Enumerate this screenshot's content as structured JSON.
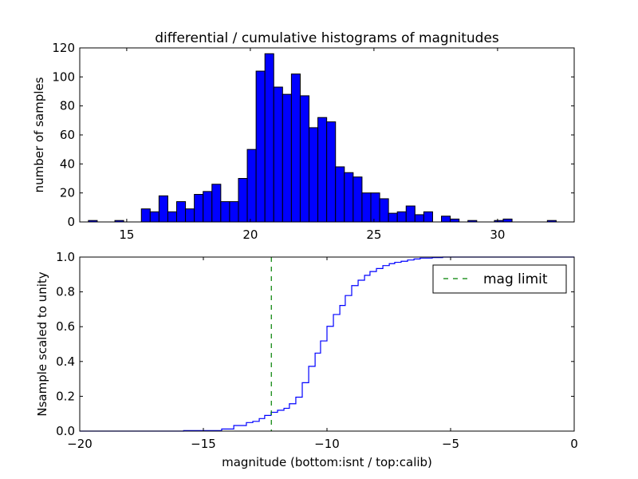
{
  "colors": {
    "bars": "#0000ff",
    "edge": "#000000",
    "cumulative": "#0000ff",
    "mag_limit": "#008000"
  },
  "chart_data": [
    {
      "type": "bar",
      "title": "differential / cumulative histograms of magnitudes",
      "xlabel": "",
      "ylabel": "number of samples",
      "xlim": [
        13.1,
        33.1
      ],
      "ylim": [
        0,
        120
      ],
      "xticks": [
        15,
        20,
        25,
        30
      ],
      "yticks": [
        0,
        20,
        40,
        60,
        80,
        100,
        120
      ],
      "bin_start": 13.45,
      "bin_width": 0.357,
      "values": [
        1,
        0,
        0,
        1,
        0,
        0,
        9,
        7,
        18,
        7,
        14,
        9,
        19,
        21,
        26,
        14,
        14,
        30,
        50,
        104,
        116,
        93,
        88,
        102,
        87,
        65,
        72,
        69,
        38,
        34,
        31,
        20,
        20,
        16,
        6,
        7,
        11,
        5,
        7,
        0,
        4,
        2,
        0,
        1,
        0,
        0,
        1,
        2,
        0,
        0,
        0,
        0,
        1
      ],
      "grid": false
    },
    {
      "type": "line",
      "title": "",
      "xlabel": "magnitude (bottom:isnt / top:calib)",
      "ylabel": "Nsample scaled to unity",
      "xlim": [
        -20,
        0
      ],
      "ylim": [
        0,
        1.0
      ],
      "xticks": [
        -20,
        -15,
        -10,
        -5,
        0
      ],
      "xtick_labels": [
        "−20",
        "−15",
        "−10",
        "−5",
        "0"
      ],
      "yticks": [
        0.0,
        0.2,
        0.4,
        0.6,
        0.8,
        1.0
      ],
      "ytick_labels": [
        "0.0",
        "0.2",
        "0.4",
        "0.6",
        "0.8",
        "1.0"
      ],
      "series": [
        {
          "name": "cumulative",
          "style": "steps",
          "x": [
            -20,
            -15.8,
            -14.26,
            -13.77,
            -13.26,
            -13.0,
            -12.74,
            -12.52,
            -12.26,
            -12.0,
            -11.74,
            -11.52,
            -11.26,
            -11.0,
            -10.74,
            -10.48,
            -10.26,
            -10.0,
            -9.74,
            -9.48,
            -9.26,
            -9.0,
            -8.74,
            -8.48,
            -8.26,
            -8.0,
            -7.74,
            -7.48,
            -7.26,
            -7.0,
            -6.74,
            -6.48,
            -6.23,
            -5.74,
            -5.32,
            0
          ],
          "y": [
            0,
            0.003,
            0.012,
            0.032,
            0.049,
            0.056,
            0.072,
            0.09,
            0.108,
            0.12,
            0.131,
            0.157,
            0.195,
            0.278,
            0.372,
            0.448,
            0.518,
            0.602,
            0.67,
            0.722,
            0.779,
            0.836,
            0.867,
            0.895,
            0.917,
            0.934,
            0.951,
            0.962,
            0.97,
            0.976,
            0.983,
            0.989,
            0.994,
            0.997,
            1.0,
            1.0
          ]
        },
        {
          "name": "mag limit",
          "style": "dashed-vertical",
          "x": -12.25
        }
      ],
      "legend": {
        "entries": [
          "mag limit"
        ],
        "placement": "top-right"
      },
      "grid": false
    }
  ]
}
